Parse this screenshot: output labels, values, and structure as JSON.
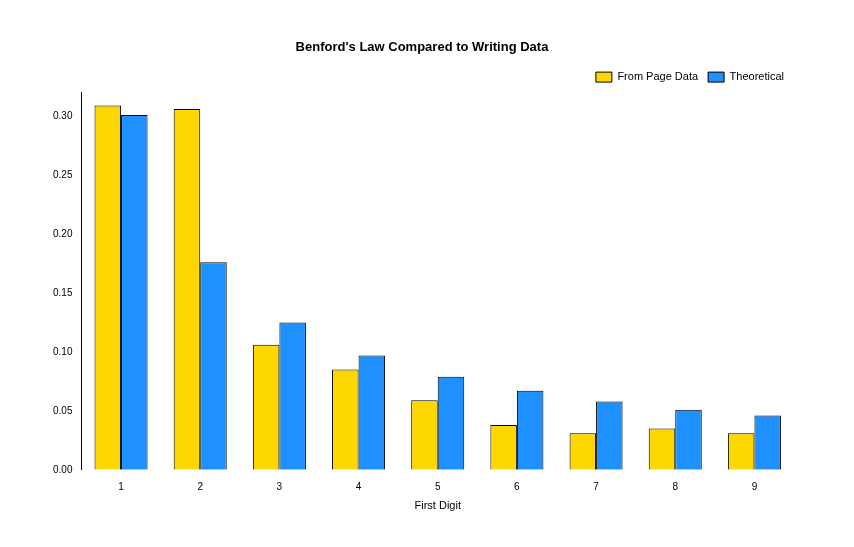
{
  "chart_data": {
    "type": "bar",
    "title": "Benford's Law Compared to Writing Data",
    "x_label": "First Digit",
    "categories": [
      "1",
      "2",
      "3",
      "4",
      "5",
      "6",
      "7",
      "8",
      "9"
    ],
    "series": [
      {
        "name": "From Page Data",
        "color": "#FFD700",
        "values": [
          0.309,
          0.306,
          0.106,
          0.085,
          0.059,
          0.038,
          0.031,
          0.035,
          0.031
        ]
      },
      {
        "name": "Theoretical",
        "color": "#1E90FF",
        "values": [
          0.301,
          0.176,
          0.125,
          0.097,
          0.079,
          0.067,
          0.058,
          0.051,
          0.046
        ]
      }
    ],
    "ylim": [
      0,
      0.32
    ],
    "yticks": [
      {
        "value": 0,
        "label": "0.00"
      },
      {
        "value": 0.05,
        "label": "0.05"
      },
      {
        "value": 0.1,
        "label": "0.10"
      },
      {
        "value": 0.15,
        "label": "0.15"
      },
      {
        "value": 0.2,
        "label": "0.20"
      },
      {
        "value": 0.25,
        "label": "0.25"
      },
      {
        "value": 0.3,
        "label": "0.30"
      }
    ],
    "grid": false,
    "legend": "top-right"
  }
}
